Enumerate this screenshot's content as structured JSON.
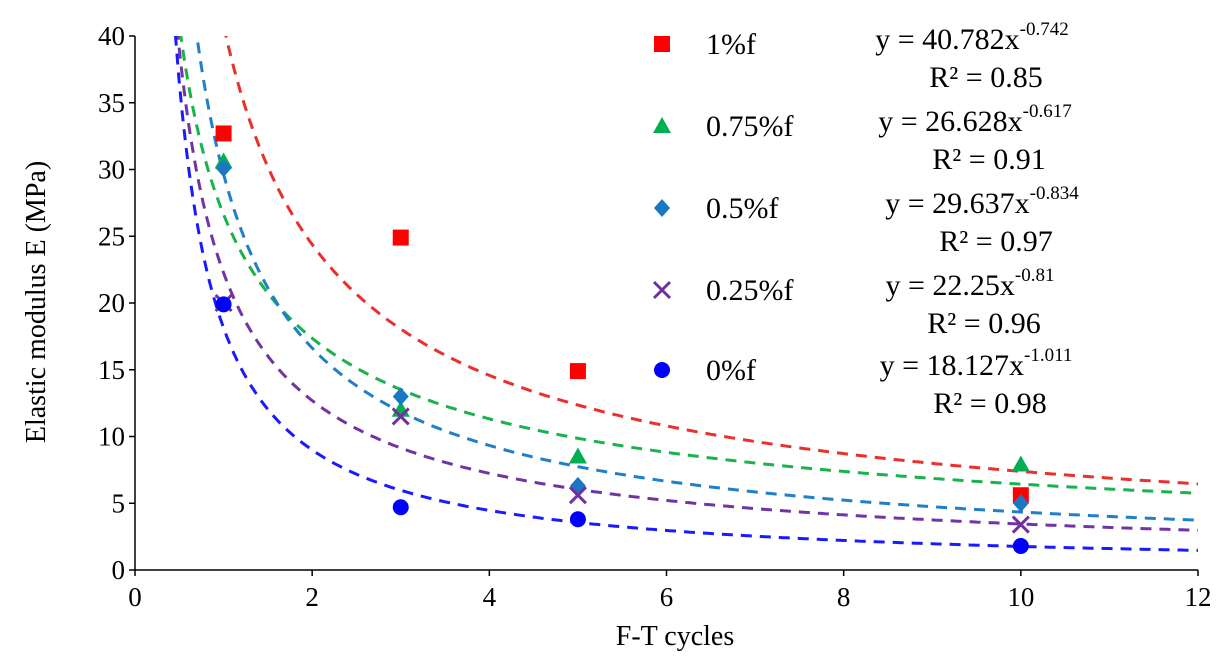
{
  "chart_data": {
    "type": "scatter",
    "title": "",
    "xlabel": "F-T cycles",
    "ylabel": "Elastic modulus E (MPa)",
    "xlim": [
      0,
      12
    ],
    "ylim": [
      0,
      40
    ],
    "xticks": [
      0,
      2,
      4,
      6,
      8,
      10,
      12
    ],
    "yticks": [
      0,
      5,
      10,
      15,
      20,
      25,
      30,
      35,
      40
    ],
    "grid": false,
    "legend_position": "top-right",
    "series": [
      {
        "name": "1%f",
        "marker": "square",
        "color": "#ff0000",
        "x": [
          1,
          3,
          5,
          10
        ],
        "y": [
          32.7,
          24.9,
          14.9,
          5.6
        ],
        "fit": {
          "a": 40.782,
          "b": -0.742,
          "base": "y = 40.782x",
          "exp": "-0.742",
          "r2": "R² = 0.85",
          "line_color": "#e8302c"
        }
      },
      {
        "name": "0.75%f",
        "marker": "triangle",
        "color": "#00b050",
        "x": [
          1,
          3,
          5,
          10
        ],
        "y": [
          30.6,
          12.0,
          8.5,
          7.9
        ],
        "fit": {
          "a": 26.628,
          "b": -0.617,
          "base": "y = 26.628x",
          "exp": "-0.617",
          "r2": "R² = 0.91",
          "line_color": "#19b24b"
        }
      },
      {
        "name": "0.5%f",
        "marker": "diamond",
        "color": "#1a78c2",
        "x": [
          1,
          3,
          5,
          10
        ],
        "y": [
          30.1,
          13.0,
          6.3,
          5.0
        ],
        "fit": {
          "a": 29.637,
          "b": -0.834,
          "base": "y = 29.637x",
          "exp": "-0.834",
          "r2": "R² = 0.97",
          "line_color": "#1f7fc8"
        }
      },
      {
        "name": "0.25%f",
        "marker": "x",
        "color": "#7030a0",
        "x": [
          1,
          3,
          5,
          10
        ],
        "y": [
          20.0,
          11.5,
          5.6,
          3.4
        ],
        "fit": {
          "a": 22.25,
          "b": -0.81,
          "base": "y = 22.25x",
          "exp": "-0.81",
          "r2": "R² = 0.96",
          "line_color": "#7034a6"
        }
      },
      {
        "name": "0%f",
        "marker": "circle",
        "color": "#0000ff",
        "x": [
          1,
          3,
          5,
          10
        ],
        "y": [
          19.9,
          4.7,
          3.8,
          1.8
        ],
        "fit": {
          "a": 18.127,
          "b": -1.011,
          "base": "y = 18.127x",
          "exp": "-1.011",
          "r2": "R² = 0.98",
          "line_color": "#1a1aff"
        }
      }
    ]
  }
}
